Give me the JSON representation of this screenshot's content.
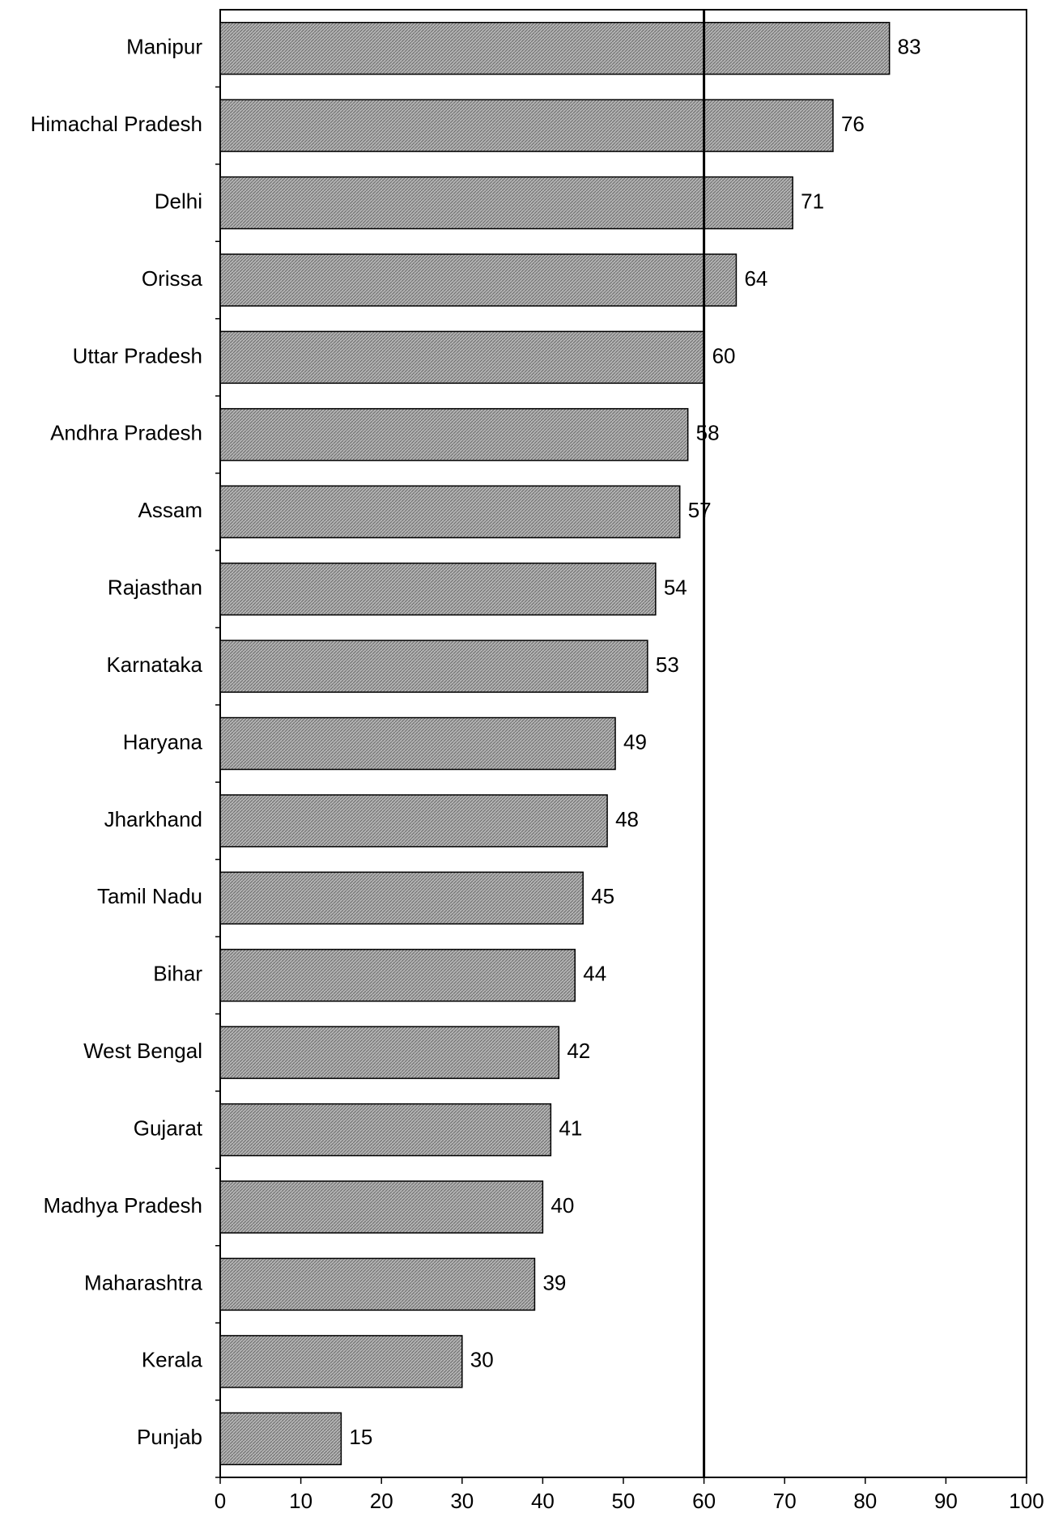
{
  "chart_data": {
    "type": "bar",
    "orientation": "horizontal",
    "categories": [
      "Manipur",
      "Himachal Pradesh",
      "Delhi",
      "Orissa",
      "Uttar Pradesh",
      "Andhra Pradesh",
      "Assam",
      "Rajasthan",
      "Karnataka",
      "Haryana",
      "Jharkhand",
      "Tamil Nadu",
      "Bihar",
      "West Bengal",
      "Gujarat",
      "Madhya Pradesh",
      "Maharashtra",
      "Kerala",
      "Punjab"
    ],
    "values": [
      83,
      76,
      71,
      64,
      60,
      58,
      57,
      54,
      53,
      49,
      48,
      45,
      44,
      42,
      41,
      40,
      39,
      30,
      15
    ],
    "value_labels": [
      "83",
      "76",
      "71",
      "64",
      "60",
      "58",
      "57",
      "54",
      "53",
      "49",
      "48",
      "45",
      "44",
      "42",
      "41",
      "40",
      "39",
      "30",
      "15"
    ],
    "xlim": [
      0,
      100
    ],
    "x_ticks": [
      "0",
      "10",
      "20",
      "30",
      "40",
      "50",
      "60",
      "70",
      "80",
      "90",
      "100"
    ],
    "reference_line": 60,
    "title": "",
    "xlabel": "",
    "ylabel": "",
    "grid": false,
    "legend": "none",
    "colors": {
      "bar_fill": "#b4b4b4",
      "bar_hatch": "#6a6a6a",
      "bar_stroke": "#000000",
      "axis": "#000000",
      "reference_line": "#000000"
    }
  }
}
